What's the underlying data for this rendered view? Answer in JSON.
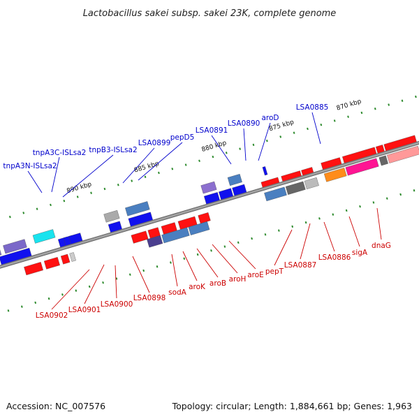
{
  "title": "Lactobacillus sakei subsp. sakei 23K, complete genome",
  "footer": {
    "accession": "Accession: NC_007576",
    "summary": "Topology: circular; Length: 1,884,661 bp; Genes: 1,963"
  },
  "colors": {
    "backbone": "#7a7a7a",
    "top_label": "#0000cc",
    "bottom_label": "#cc0000",
    "tick": "#2e8b2e"
  },
  "chart_data": {
    "type": "linear genome map",
    "scale_unit": "kbp",
    "scale_ticks": [
      {
        "label": "870 kbp",
        "kbp": 870
      },
      {
        "label": "875 kbp",
        "kbp": 875
      },
      {
        "label": "880 kbp",
        "kbp": 880
      },
      {
        "label": "885 kbp",
        "kbp": 885
      },
      {
        "label": "890 kbp",
        "kbp": 890
      }
    ],
    "top_labels": [
      "tnpA3N-ISLsa2",
      "tnpA3C-ISLsa2",
      "tnpB3-ISLsa2",
      "LSA0899",
      "pepD5",
      "LSA0891",
      "LSA0890",
      "aroD",
      "LSA0885"
    ],
    "bottom_labels": [
      "LSA0902",
      "LSA0901",
      "LSA0900",
      "LSA0898",
      "sodA",
      "aroK",
      "aroB",
      "aroH",
      "aroE",
      "pepT",
      "LSA0887",
      "LSA0886",
      "sigA",
      "dnaG"
    ]
  }
}
